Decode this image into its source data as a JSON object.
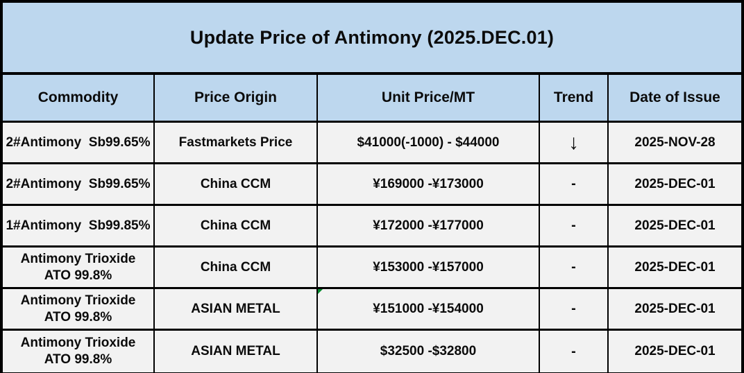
{
  "title": "Update Price of Antimony (2025.DEC.01)",
  "table": {
    "headers": [
      "Commodity",
      "Price Origin",
      "Unit Price/MT",
      "Trend",
      "Date of Issue"
    ],
    "rows": [
      {
        "commodity": "2#Antimony  Sb99.65%",
        "origin": "Fastmarkets Price",
        "price": "$41000(-1000) - $44000",
        "trend": "↓",
        "date": "2025-NOV-28"
      },
      {
        "commodity": "2#Antimony  Sb99.65%",
        "origin": "China CCM",
        "price": "¥169000 -¥173000",
        "trend": "-",
        "date": "2025-DEC-01"
      },
      {
        "commodity": "1#Antimony  Sb99.85%",
        "origin": "China CCM",
        "price": "¥172000 -¥177000",
        "trend": "-",
        "date": "2025-DEC-01"
      },
      {
        "commodity": "Antimony Trioxide\nATO 99.8%",
        "origin": "China CCM",
        "price": "¥153000 -¥157000",
        "trend": "-",
        "date": "2025-DEC-01"
      },
      {
        "commodity": "Antimony Trioxide\nATO 99.8%",
        "origin": "ASIAN METAL",
        "price": "¥151000 -¥154000",
        "trend": "-",
        "date": "2025-DEC-01"
      },
      {
        "commodity": "Antimony Trioxide\nATO 99.8%",
        "origin": "ASIAN METAL",
        "price": "$32500 -$32800",
        "trend": "-",
        "date": "2025-DEC-01"
      }
    ]
  },
  "colors": {
    "banner_bg": "#BDD7EE",
    "header_bg": "#BDD7EE",
    "row_bg": "#F2F2F2",
    "border": "#000000",
    "comment_marker_green": "#00882B"
  }
}
